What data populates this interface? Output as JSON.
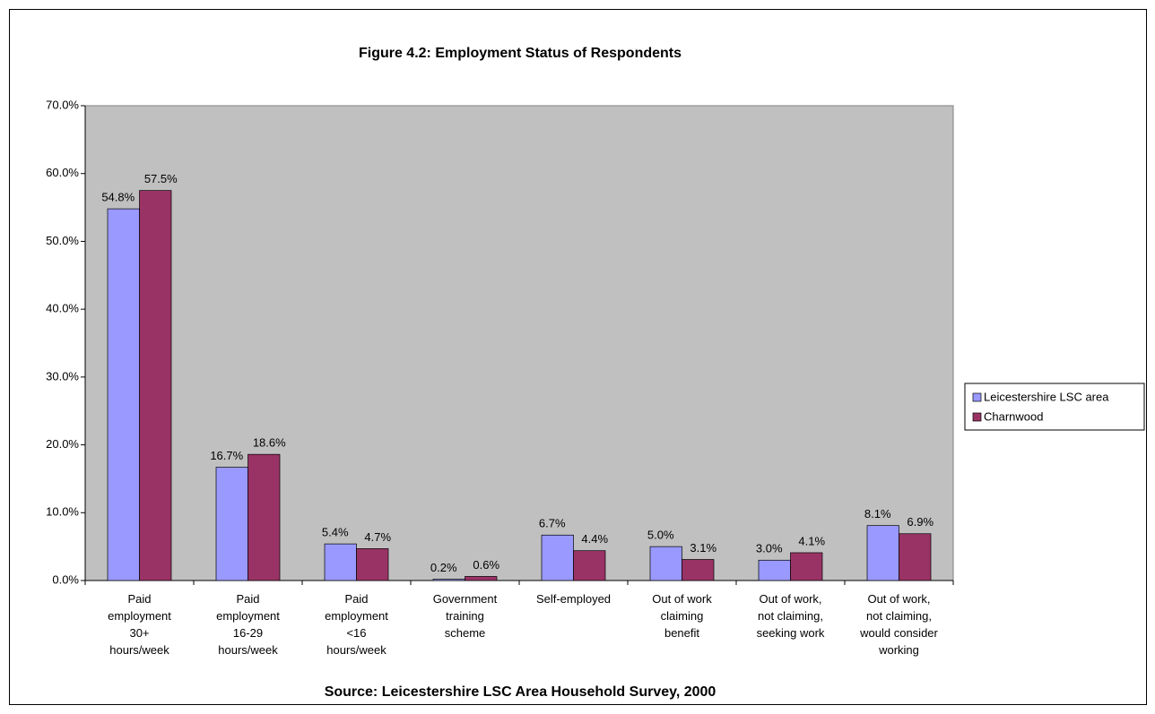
{
  "chart_data": {
    "type": "bar",
    "title": "Figure 4.2: Employment Status of Respondents",
    "source": "Source: Leicestershire LSC Area Household Survey, 2000",
    "categories": [
      "Paid\nemployment\n30+\nhours/week",
      "Paid\nemployment\n16-29\nhours/week",
      "Paid\nemployment\n<16\nhours/week",
      "Government\ntraining\nscheme",
      "Self-employed",
      "Out of work\nclaiming\nbenefit",
      "Out of work,\nnot claiming,\nseeking work",
      "Out of work,\nnot claiming,\nwould consider\nworking"
    ],
    "series": [
      {
        "name": "Leicestershire LSC area",
        "color": "#9999ff",
        "values": [
          54.8,
          16.7,
          5.4,
          0.2,
          6.7,
          5.0,
          3.0,
          8.1
        ],
        "value_labels": [
          "54.8%",
          "16.7%",
          "5.4%",
          "0.2%",
          "6.7%",
          "5.0%",
          "3.0%",
          "8.1%"
        ]
      },
      {
        "name": "Charnwood",
        "color": "#993366",
        "values": [
          57.5,
          18.6,
          4.7,
          0.6,
          4.4,
          3.1,
          4.1,
          6.9
        ],
        "value_labels": [
          "57.5%",
          "18.6%",
          "4.7%",
          "0.6%",
          "4.4%",
          "3.1%",
          "4.1%",
          "6.9%"
        ]
      }
    ],
    "ylim": [
      0,
      70
    ],
    "yticks": [
      {
        "value": 0,
        "label": "0.0%"
      },
      {
        "value": 10,
        "label": "10.0%"
      },
      {
        "value": 20,
        "label": "20.0%"
      },
      {
        "value": 30,
        "label": "30.0%"
      },
      {
        "value": 40,
        "label": "40.0%"
      },
      {
        "value": 50,
        "label": "50.0%"
      },
      {
        "value": 60,
        "label": "60.0%"
      },
      {
        "value": 70,
        "label": "70.0%"
      }
    ],
    "plot_background": "#c0c0c0",
    "legend": "right"
  }
}
